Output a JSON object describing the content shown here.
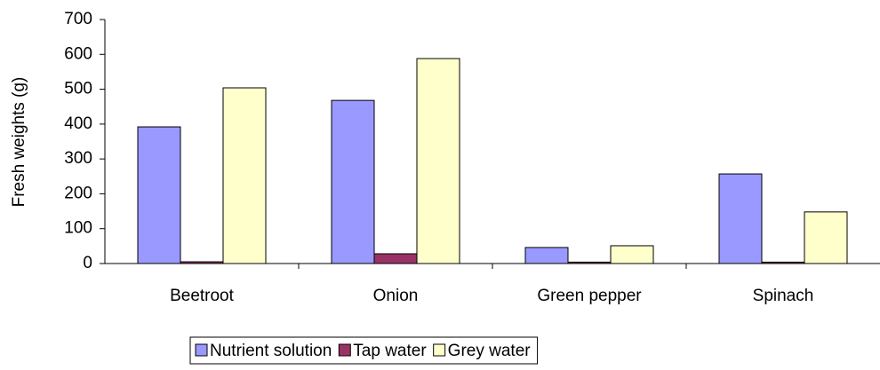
{
  "chart_data": {
    "type": "bar",
    "y_label": "Fresh weights (g)",
    "categories": [
      "Beetroot",
      "Onion",
      "Green pepper",
      "Spinach"
    ],
    "series": [
      {
        "name": "Nutrient solution",
        "color": "#9999ff",
        "values": [
          392,
          468,
          46,
          257
        ]
      },
      {
        "name": "Tap water",
        "color": "#993366",
        "values": [
          5,
          28,
          4,
          4
        ]
      },
      {
        "name": "Grey water",
        "color": "#ffffcc",
        "values": [
          504,
          588,
          51,
          148
        ]
      }
    ],
    "ylim": [
      0,
      700
    ],
    "yticks": [
      0,
      100,
      200,
      300,
      400,
      500,
      600,
      700
    ],
    "grid": false,
    "legend": "bottom"
  }
}
